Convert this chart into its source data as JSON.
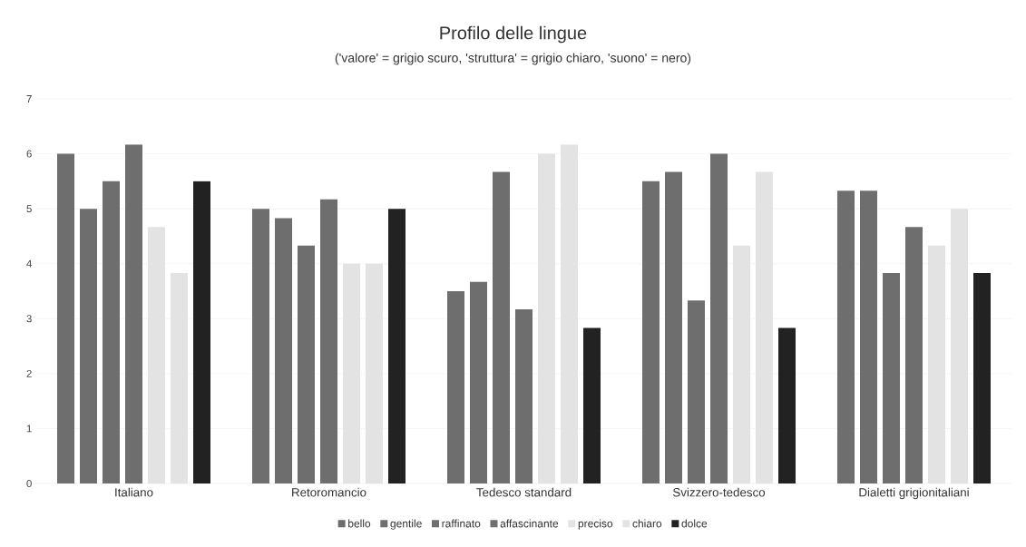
{
  "chart_data": {
    "type": "bar",
    "title": "Profilo delle lingue",
    "subtitle": "('valore' = grigio scuro, 'struttura' = grigio chiaro, 'suono' = nero)",
    "categories": [
      "Italiano",
      "Retoromancio",
      "Tedesco standard",
      "Svizzero-tedesco",
      "Dialetti grigionitaliani"
    ],
    "series": [
      {
        "name": "bello",
        "color": "#6e6e6e",
        "values": [
          6,
          5,
          3.5,
          5.5,
          5.33
        ]
      },
      {
        "name": "gentile",
        "color": "#6e6e6e",
        "values": [
          5,
          4.83,
          3.67,
          5.67,
          5.33
        ]
      },
      {
        "name": "raffinato",
        "color": "#6e6e6e",
        "values": [
          5.5,
          4.33,
          5.67,
          3.33,
          3.83
        ]
      },
      {
        "name": "affascinante",
        "color": "#6e6e6e",
        "values": [
          6.17,
          5.17,
          3.17,
          6,
          4.67
        ]
      },
      {
        "name": "preciso",
        "color": "#e3e3e3",
        "values": [
          4.67,
          4,
          6,
          4.33,
          4.33
        ]
      },
      {
        "name": "chiaro",
        "color": "#e3e3e3",
        "values": [
          3.83,
          4,
          6.17,
          5.67,
          5
        ]
      },
      {
        "name": "dolce",
        "color": "#222222",
        "values": [
          5.5,
          5,
          2.83,
          2.83,
          3.83
        ]
      }
    ],
    "ylim": [
      0,
      7
    ],
    "yticks": [
      0,
      1,
      2,
      3,
      4,
      5,
      6,
      7
    ],
    "grid": "y",
    "legend": "bottom"
  }
}
